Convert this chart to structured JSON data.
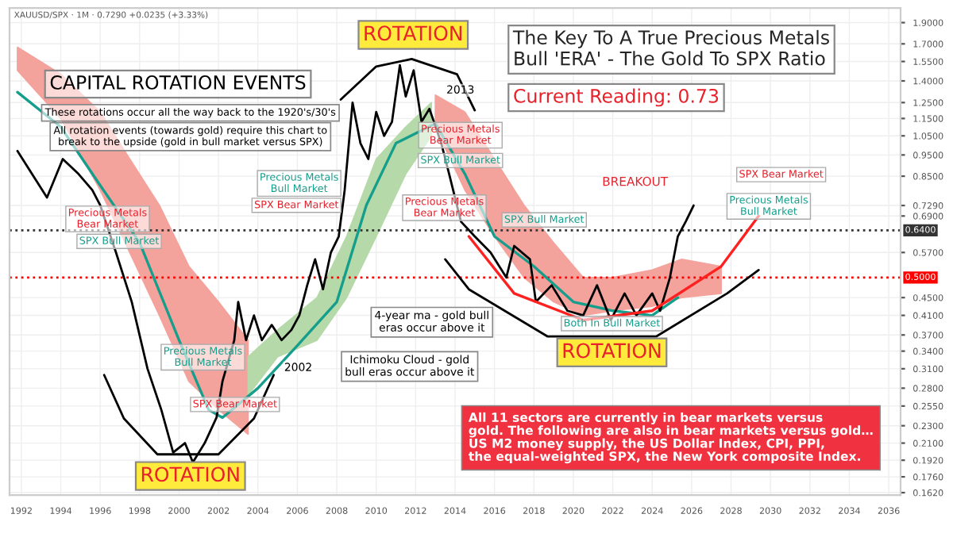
{
  "chart_data": {
    "type": "line",
    "title": "The Key To A True Precious Metals\nBull 'ERA' - The Gold To SPX Ratio",
    "subtitle": "Current Reading: 0.73",
    "log": true,
    "grid": true,
    "legend": false,
    "line_style": "solid",
    "marker": "none",
    "xlim": [
      1991.4,
      2036.6
    ],
    "xticks": [
      1992,
      1994,
      1996,
      1998,
      2000,
      2002,
      2004,
      2006,
      2008,
      2010,
      2012,
      2014,
      2016,
      2018,
      2020,
      2022,
      2024,
      2026,
      2028,
      2030,
      2032,
      2034,
      2036
    ],
    "ylim": [
      0.16,
      2.05
    ],
    "yticks": [
      {
        "value": 1.9,
        "label": "1.9000"
      },
      {
        "value": 1.7,
        "label": "1.7000"
      },
      {
        "value": 1.55,
        "label": "1.5500"
      },
      {
        "value": 1.4,
        "label": "1.4000"
      },
      {
        "value": 1.25,
        "label": "1.2500"
      },
      {
        "value": 1.15,
        "label": "1.1500"
      },
      {
        "value": 1.05,
        "label": "1.0500"
      },
      {
        "value": 0.95,
        "label": "0.9500"
      },
      {
        "value": 0.85,
        "label": "0.8500"
      },
      {
        "value": 0.729,
        "label": "0.7290"
      },
      {
        "value": 0.69,
        "label": "0.6900"
      },
      {
        "value": 0.57,
        "label": "0.5700"
      },
      {
        "value": 0.45,
        "label": "0.4500"
      },
      {
        "value": 0.41,
        "label": "0.4100"
      },
      {
        "value": 0.37,
        "label": "0.3700"
      },
      {
        "value": 0.34,
        "label": "0.3400"
      },
      {
        "value": 0.31,
        "label": "0.3100"
      },
      {
        "value": 0.28,
        "label": "0.2800"
      },
      {
        "value": 0.255,
        "label": "0.2550"
      },
      {
        "value": 0.23,
        "label": "0.2300"
      },
      {
        "value": 0.21,
        "label": "0.2100"
      },
      {
        "value": 0.192,
        "label": "0.1920"
      },
      {
        "value": 0.176,
        "label": "0.1760"
      },
      {
        "value": 0.162,
        "label": "0.1620"
      }
    ],
    "ref_lines": [
      {
        "axis": "y",
        "value": 0.64,
        "label": "0.6400",
        "color": "#333333",
        "line_style": "dotted"
      },
      {
        "axis": "y",
        "value": 0.5,
        "label": "0.5000",
        "color": "#ff0000",
        "line_style": "dotted"
      }
    ],
    "series": [
      {
        "color": "#f4a29c",
        "x": [
          1991.8,
          1994,
          1996,
          1997.5,
          1999,
          2000.5,
          2002,
          2003.5
        ],
        "values": [
          null,
          null,
          null,
          null,
          null,
          null,
          null,
          null
        ],
        "lower": [
          1.48,
          1.15,
          0.79,
          0.57,
          0.41,
          0.29,
          0.25,
          0.22
        ],
        "upper": [
          1.67,
          1.45,
          1.19,
          0.93,
          0.73,
          0.53,
          0.44,
          0.36
        ]
      },
      {
        "color": "#b5d9a8",
        "x": [
          2003.5,
          2005,
          2007,
          2008.5,
          2010,
          2011.5,
          2012.8
        ],
        "values": [
          null,
          null,
          null,
          null,
          null,
          null,
          null
        ],
        "lower": [
          0.27,
          0.33,
          0.36,
          0.45,
          0.62,
          0.86,
          1.05
        ],
        "upper": [
          0.33,
          0.38,
          0.45,
          0.62,
          0.93,
          1.1,
          1.25
        ]
      },
      {
        "color": "#f4a29c",
        "x": [
          2013,
          2014.5,
          2016,
          2017.5,
          2019,
          2020.5,
          2022,
          2024,
          2025.5,
          2027.5
        ],
        "values": [
          null,
          null,
          null,
          null,
          null,
          null,
          null,
          null,
          null,
          null
        ],
        "lower": [
          1.1,
          0.79,
          0.62,
          0.5,
          0.44,
          0.41,
          0.42,
          0.43,
          0.45,
          0.46
        ],
        "upper": [
          1.3,
          1.19,
          0.93,
          0.73,
          0.6,
          0.5,
          0.5,
          0.52,
          0.55,
          0.53
        ]
      },
      {
        "color": "#159e8c",
        "x": [
          1991.8,
          1994,
          1996,
          1998,
          2000,
          2001.5,
          2002.2,
          2004,
          2006,
          2008,
          2009.5,
          2011,
          2013,
          2014.5,
          2016,
          2018,
          2020,
          2022,
          2024,
          2025.3
        ],
        "values": [
          1.32,
          1.1,
          0.81,
          0.6,
          0.36,
          0.25,
          0.24,
          0.28,
          0.35,
          0.44,
          0.73,
          1.01,
          1.12,
          0.86,
          0.62,
          0.53,
          0.44,
          0.42,
          0.41,
          0.45
        ]
      },
      {
        "color": "#000000",
        "x": [
          1991.8,
          1993.3,
          1994.1,
          1994.9,
          1995.6,
          1996.0,
          1996.8,
          1997.6,
          1998.4,
          1999.1,
          1999.7,
          2000.3,
          2000.7,
          2001.3,
          2001.9,
          2002.2,
          2002.8,
          2003.0,
          2003.4,
          2003.8,
          2004.2,
          2004.7,
          2005.2,
          2005.7,
          2006.1,
          2006.5,
          2006.9,
          2007.3,
          2007.7,
          2008.1,
          2008.4,
          2008.8,
          2009.2,
          2009.6,
          2010.0,
          2010.4,
          2010.8,
          2011.2,
          2011.5,
          2011.9,
          2012.3,
          2012.7,
          2013.3,
          2013.7,
          2014.3,
          2015.0,
          2015.8,
          2016.6,
          2017.0,
          2017.8,
          2018.1,
          2018.9,
          2019.7,
          2020.5,
          2021.2,
          2021.9,
          2022.6,
          2023.2,
          2024.0,
          2024.4,
          2024.9,
          2025.3,
          2025.7,
          2026.1
        ],
        "values": [
          0.97,
          0.76,
          0.93,
          0.86,
          0.79,
          0.73,
          0.57,
          0.44,
          0.31,
          0.25,
          0.2,
          0.21,
          0.19,
          0.21,
          0.24,
          0.29,
          0.36,
          0.44,
          0.36,
          0.41,
          0.36,
          0.39,
          0.36,
          0.38,
          0.41,
          0.48,
          0.55,
          0.47,
          0.57,
          0.62,
          0.79,
          1.25,
          1.01,
          0.93,
          1.19,
          1.05,
          1.13,
          1.52,
          1.29,
          1.48,
          1.13,
          1.21,
          1.01,
          0.86,
          0.67,
          0.62,
          0.57,
          0.5,
          0.59,
          0.55,
          0.44,
          0.48,
          0.42,
          0.41,
          0.48,
          0.4,
          0.46,
          0.41,
          0.46,
          0.42,
          0.5,
          0.62,
          0.67,
          0.729
        ]
      },
      {
        "type": "line",
        "color": "#000000",
        "x": [
          1996.2,
          1997.2,
          1998.9,
          2002.0,
          2003.8,
          2004.8
        ],
        "values": [
          0.3,
          0.239,
          0.198,
          0.198,
          0.239,
          0.3
        ]
      },
      {
        "type": "line",
        "color": "#000000",
        "x": [
          2008.2,
          2010.0,
          2011.8,
          2014.1,
          2015.0
        ],
        "values": [
          1.27,
          1.51,
          1.57,
          1.45,
          1.2
        ]
      },
      {
        "type": "line",
        "color": "#000000",
        "x": [
          2013.5,
          2014.7,
          2018.7,
          2024.2,
          2027.8,
          2029.4
        ],
        "values": [
          0.55,
          0.47,
          0.367,
          0.367,
          0.46,
          0.52
        ]
      },
      {
        "type": "line",
        "color": "#ff2020",
        "x": [
          2014.7,
          2017,
          2020.5,
          2024,
          2027.5,
          2029.4
        ],
        "values": [
          0.62,
          0.46,
          0.4,
          0.42,
          0.53,
          0.69
        ]
      }
    ],
    "annotations": [
      "XAUUSD/SPX · 1M · 0.7290 +0.0235 (+3.33%)",
      "CAPITAL ROTATION EVENTS",
      "These rotations occur all the way back to the 1920's/30's",
      "All rotation events (towards gold) require this chart to\nbreak to the upside (gold in bull market versus SPX)",
      "ROTATION",
      "ROTATION",
      "ROTATION",
      "Precious Metals\nBear Market",
      "SPX Bull Market",
      "Precious Metals\nBull Market",
      "SPX Bear Market",
      "Precious Metals\nBull Market",
      "SPX Bear Market",
      "Precious Metals\nBear Market",
      "SPX Bull Market",
      "Precious Metals\nBear Market",
      "SPX Bull Market",
      "Both In Bull Market",
      "BREAKOUT",
      "SPX Bear Market",
      "Precious Metals\nBull Market",
      "2013",
      "2002",
      "4-year ma - gold bull\neras occur above it",
      "Ichimoku Cloud - gold\nbull eras occur above it",
      "All 11 sectors are currently in bear markets versus\ngold. The following are also in bear markets versus gold…\nUS M2 money supply, the US Dollar Index, CPI, PPI,\nthe equal-weighted SPX, the New York composite Index."
    ]
  }
}
